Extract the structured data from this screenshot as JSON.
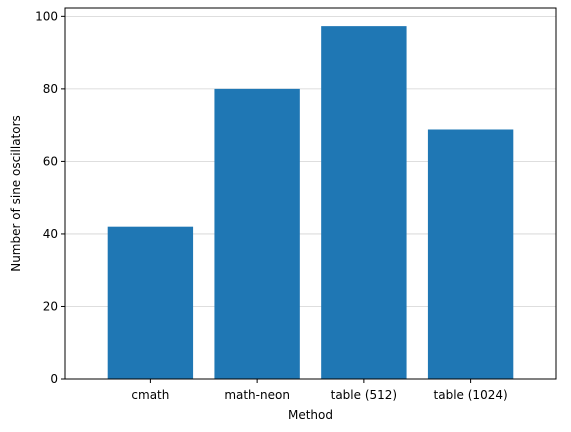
{
  "chart_data": {
    "type": "bar",
    "categories": [
      "cmath",
      "math-neon",
      "table (512)",
      "table (1024)"
    ],
    "values": [
      42,
      80,
      97.3,
      68.8
    ],
    "xlabel": "Method",
    "ylabel": "Number of sine oscillators",
    "ylim": [
      0,
      102.3
    ],
    "yticks": [
      0,
      20,
      40,
      60,
      80,
      100
    ],
    "grid": "y",
    "bar_color": "#1f77b4",
    "grid_color": "#d3d3d3"
  }
}
